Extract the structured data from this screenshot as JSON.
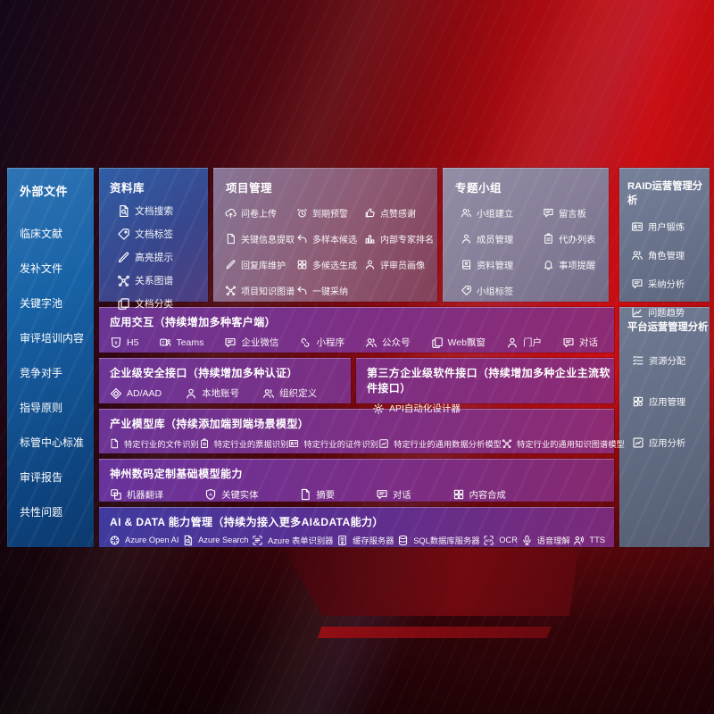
{
  "colors": {
    "background_red": "#c90e13",
    "external_panel_blue": "#1762a6",
    "library_panel_indigo": "#38478d",
    "project_panel_mauve": "#8e5b74",
    "group_panel_gray": "#867d98",
    "ops_panel_slate": "#67718a",
    "row_purple": "#7d2f85",
    "row_indigo": "#3f3a9e"
  },
  "panels": {
    "external": {
      "title": "外部文件",
      "items": [
        "临床文献",
        "发补文件",
        "关键字池",
        "审评培训内容",
        "竞争对手",
        "指导原则",
        "标管中心标准",
        "审评报告",
        "共性问题"
      ]
    },
    "library": {
      "title": "资料库",
      "items": [
        {
          "label": "文档搜索",
          "icon": "document-search"
        },
        {
          "label": "文档标签",
          "icon": "document-tag"
        },
        {
          "label": "高亮提示",
          "icon": "highlight-pen"
        },
        {
          "label": "关系图谱",
          "icon": "relation-graph"
        },
        {
          "label": "文档分类",
          "icon": "document-stack"
        }
      ]
    },
    "project": {
      "title": "项目管理",
      "items": [
        {
          "label": "问卷上传",
          "icon": "cloud-upload"
        },
        {
          "label": "到期预警",
          "icon": "alarm"
        },
        {
          "label": "点赞感谢",
          "icon": "thumbs-up"
        },
        {
          "label": "关键信息提取",
          "icon": "document-extract"
        },
        {
          "label": "多样本候选",
          "icon": "reply-arrow"
        },
        {
          "label": "内部专家排名",
          "icon": "ranking-podium"
        },
        {
          "label": "回复库维护",
          "icon": "edit-pen"
        },
        {
          "label": "多候选生成",
          "icon": "generate-grid"
        },
        {
          "label": "评审员画像",
          "icon": "person-profile"
        },
        {
          "label": "项目知识图谱",
          "icon": "knowledge-graph"
        },
        {
          "label": "一键采纳",
          "icon": "adopt-arrow"
        }
      ]
    },
    "group": {
      "title": "专题小组",
      "items": [
        {
          "label": "小组建立",
          "icon": "group-users"
        },
        {
          "label": "留言板",
          "icon": "message-board"
        },
        {
          "label": "成员管理",
          "icon": "member-person"
        },
        {
          "label": "代办列表",
          "icon": "todo-clipboard"
        },
        {
          "label": "资料管理",
          "icon": "material-book"
        },
        {
          "label": "事项提醒",
          "icon": "reminder-bell"
        },
        {
          "label": "小组标签",
          "icon": "group-tag"
        }
      ]
    },
    "raid": {
      "title": "RAID运营管理分析",
      "items": [
        {
          "label": "用户锻炼",
          "icon": "user-idcard"
        },
        {
          "label": "角色管理",
          "icon": "role-users"
        },
        {
          "label": "采纳分析",
          "icon": "qa-chat"
        },
        {
          "label": "问题趋势",
          "icon": "trend-chart"
        }
      ]
    },
    "platform": {
      "title": "平台运营管理分析",
      "items": [
        {
          "label": "资源分配",
          "icon": "resource-list"
        },
        {
          "label": "应用管理",
          "icon": "app-grid"
        },
        {
          "label": "应用分析",
          "icon": "app-chart"
        }
      ]
    }
  },
  "rows": {
    "interaction": {
      "title": "应用交互（持续增加多种客户端）",
      "items": [
        {
          "label": "H5",
          "icon": "h5"
        },
        {
          "label": "Teams",
          "icon": "teams"
        },
        {
          "label": "企业微信",
          "icon": "wechat-work"
        },
        {
          "label": "小程序",
          "icon": "mini-program"
        },
        {
          "label": "公众号",
          "icon": "official-account"
        },
        {
          "label": "Web飘窗",
          "icon": "web-window"
        },
        {
          "label": "门户",
          "icon": "portal-person"
        },
        {
          "label": "对话",
          "icon": "dialog-chat"
        }
      ]
    },
    "security": {
      "title": "企业级安全接口（持续增加多种认证）",
      "items": [
        {
          "label": "AD/AAD",
          "icon": "ad-diamond"
        },
        {
          "label": "本地账号",
          "icon": "local-account"
        },
        {
          "label": "组织定义",
          "icon": "org-users"
        }
      ]
    },
    "thirdparty": {
      "title": "第三方企业级软件接口（持续增加多种企业主流软件接口）",
      "items": [
        {
          "label": "API自动化设计器",
          "icon": "api-gear"
        }
      ]
    },
    "industry": {
      "title": "产业模型库（持续添加端到端场景模型）",
      "items": [
        {
          "label": "特定行业的文件识别",
          "icon": "file-recognition"
        },
        {
          "label": "特定行业的票据识别",
          "icon": "receipt-recognition"
        },
        {
          "label": "特定行业的证件识别",
          "icon": "certificate-recognition"
        },
        {
          "label": "特定行业的通用数据分析模型",
          "icon": "data-analysis-model"
        },
        {
          "label": "特定行业的通用知识图谱模型",
          "icon": "knowledge-graph-model"
        }
      ]
    },
    "basemodel": {
      "title": "神州数码定制基础模型能力",
      "items": [
        {
          "label": "机器翻译",
          "icon": "translate"
        },
        {
          "label": "关键实体",
          "icon": "entity-shield"
        },
        {
          "label": "摘要",
          "icon": "summary-doc"
        },
        {
          "label": "对话",
          "icon": "dialog-bubble"
        },
        {
          "label": "内容合成",
          "icon": "compose-grid"
        }
      ]
    },
    "aidata": {
      "title": "AI & DATA 能力管理（持续为接入更多AI&DATA能力）",
      "items": [
        {
          "label": "Azure Open AI",
          "icon": "openai"
        },
        {
          "label": "Azure Search",
          "icon": "azure-search"
        },
        {
          "label": "Azure 表单识别器",
          "icon": "form-recognizer"
        },
        {
          "label": "缓存服务器",
          "icon": "cache-server"
        },
        {
          "label": "SQL数据库服务器",
          "icon": "sql-database"
        },
        {
          "label": "OCR",
          "icon": "ocr"
        },
        {
          "label": "语音理解",
          "icon": "speech-understanding"
        },
        {
          "label": "TTS",
          "icon": "tts"
        }
      ]
    }
  }
}
